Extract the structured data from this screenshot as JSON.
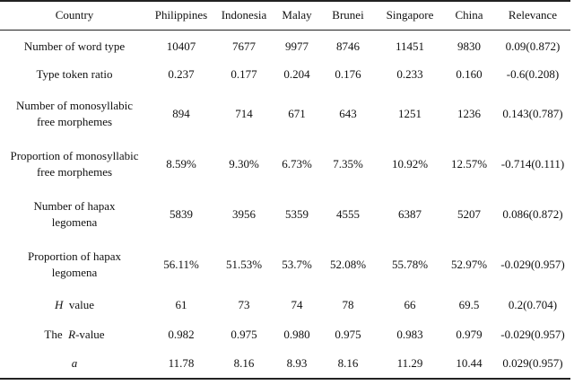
{
  "table": {
    "headers": [
      "Country",
      "Philippines",
      "Indonesia",
      "Malay",
      "Brunei",
      "Singapore",
      "China",
      "Relevance"
    ],
    "rows": [
      {
        "label": "Number of word type",
        "values": [
          "10407",
          "7677",
          "9977",
          "8746",
          "11451",
          "9830",
          "0.09(0.872)"
        ]
      },
      {
        "label": "Type token ratio",
        "values": [
          "0.237",
          "0.177",
          "0.204",
          "0.176",
          "0.233",
          "0.160",
          "-0.6(0.208)"
        ]
      },
      {
        "label_line1": "Number of monosyllabic",
        "label_line2": "free morphemes",
        "values": [
          "894",
          "714",
          "671",
          "643",
          "1251",
          "1236",
          "0.143(0.787)"
        ]
      },
      {
        "label_line1": "Proportion of monosyllabic",
        "label_line2": "free morphemes",
        "values": [
          "8.59%",
          "9.30%",
          "6.73%",
          "7.35%",
          "10.92%",
          "12.57%",
          "-0.714(0.111)"
        ]
      },
      {
        "label_line1": "Number of hapax",
        "label_line2": "legomena",
        "values": [
          "5839",
          "3956",
          "5359",
          "4555",
          "6387",
          "5207",
          "0.086(0.872)"
        ]
      },
      {
        "label_line1": "Proportion of hapax",
        "label_line2": "legomena",
        "values": [
          "56.11%",
          "51.53%",
          "53.7%",
          "52.08%",
          "55.78%",
          "52.97%",
          "-0.029(0.957)"
        ]
      },
      {
        "label_italic": "H",
        "label_rest": "value",
        "values": [
          "61",
          "73",
          "74",
          "78",
          "66",
          "69.5",
          "0.2(0.704)"
        ]
      },
      {
        "label_pre": "The",
        "label_italic": "R",
        "label_rest": "-value",
        "values": [
          "0.982",
          "0.975",
          "0.980",
          "0.975",
          "0.983",
          "0.979",
          "-0.029(0.957)"
        ]
      },
      {
        "label_italic": "a",
        "values": [
          "11.78",
          "8.16",
          "8.93",
          "8.16",
          "11.29",
          "10.44",
          "0.029(0.957)"
        ]
      }
    ]
  }
}
